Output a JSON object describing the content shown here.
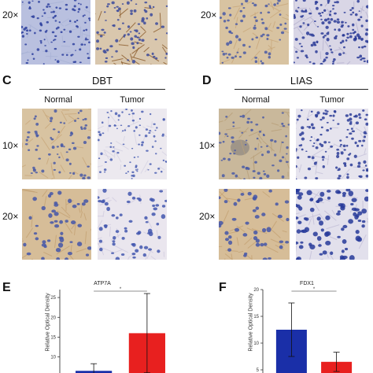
{
  "figure": {
    "top_row": {
      "mag_left": "20×",
      "mag_right": "20×"
    },
    "panel_c": {
      "letter": "C",
      "title": "DBT",
      "col_normal": "Normal",
      "col_tumor": "Tumor",
      "mag_top": "10×",
      "mag_bottom": "20×"
    },
    "panel_d": {
      "letter": "D",
      "title": "LIAS",
      "col_normal": "Normal",
      "col_tumor": "Tumor",
      "mag_top": "10×",
      "mag_bottom": "20×"
    },
    "panel_e": {
      "letter": "E"
    },
    "panel_f": {
      "letter": "F"
    }
  },
  "colors": {
    "normal_bar": "#1a2fa8",
    "tumor_bar": "#e8201f",
    "tissue_normal": "#d9c3a3",
    "tissue_tumor": "#eceaf0",
    "nucleus": "#3a4aa8"
  },
  "chart_data": [
    {
      "type": "bar",
      "title": "ATP7A",
      "ylabel": "Relative Optical Density",
      "ylim": [
        0,
        27
      ],
      "yticks": [
        5,
        10,
        15,
        20,
        25
      ],
      "series": [
        {
          "values": [
            6.5,
            16
          ],
          "errors": [
            1.8,
            10
          ]
        }
      ],
      "significance": "*"
    },
    {
      "type": "bar",
      "title": "FDX1",
      "ylabel": "Relative Optical Density",
      "ylim": [
        0,
        20
      ],
      "yticks": [
        5,
        10,
        15,
        20
      ],
      "series": [
        {
          "values": [
            12.5,
            6.5
          ],
          "errors": [
            5,
            1.8
          ]
        }
      ],
      "significance": "*"
    }
  ]
}
